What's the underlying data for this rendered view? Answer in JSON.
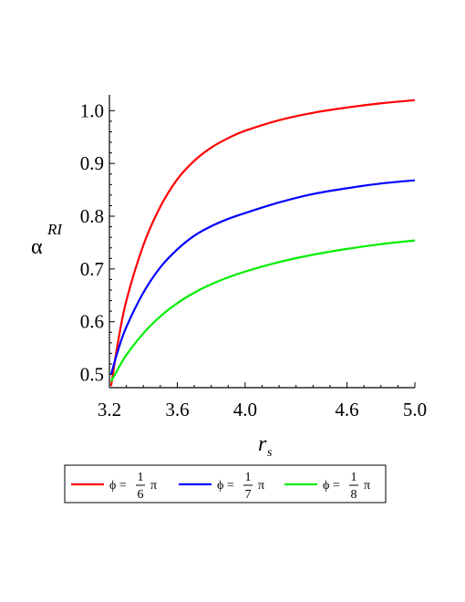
{
  "chart_data": {
    "type": "line",
    "xlabel": {
      "base": "r",
      "sub": "s"
    },
    "ylabel": {
      "base": "α",
      "sup": "RI"
    },
    "xlim": [
      3.2,
      5.0
    ],
    "ylim": [
      0.475,
      1.03
    ],
    "xticks": [
      3.2,
      3.6,
      4.0,
      4.6,
      5.0
    ],
    "xtick_labels": [
      "3.2",
      "3.6",
      "4.0",
      "4.6",
      "5.0"
    ],
    "yticks": [
      0.5,
      0.6,
      0.7,
      0.8,
      0.9,
      1.0
    ],
    "ytick_labels": [
      "0.5",
      "0.6",
      "0.7",
      "0.8",
      "0.9",
      "1.0"
    ],
    "grid": false,
    "legend_placement": "bottom",
    "series": [
      {
        "name": "ϕ = 1/6 π",
        "legend": {
          "symbol": "ϕ",
          "num": "1",
          "den": "6",
          "suffix": "π"
        },
        "color": "#ff0000",
        "x": [
          3.21,
          3.25,
          3.3,
          3.4,
          3.5,
          3.6,
          3.7,
          3.8,
          3.9,
          4.0,
          4.2,
          4.4,
          4.6,
          4.8,
          5.0
        ],
        "y": [
          0.478,
          0.56,
          0.64,
          0.745,
          0.818,
          0.87,
          0.905,
          0.93,
          0.948,
          0.962,
          0.982,
          0.996,
          1.006,
          1.014,
          1.02
        ]
      },
      {
        "name": "ϕ = 1/7 π",
        "legend": {
          "symbol": "ϕ",
          "num": "1",
          "den": "7",
          "suffix": "π"
        },
        "color": "#0000ff",
        "x": [
          3.21,
          3.25,
          3.3,
          3.4,
          3.5,
          3.6,
          3.7,
          3.8,
          3.9,
          4.0,
          4.2,
          4.4,
          4.6,
          4.8,
          5.0
        ],
        "y": [
          0.5,
          0.545,
          0.59,
          0.655,
          0.703,
          0.737,
          0.763,
          0.781,
          0.795,
          0.806,
          0.826,
          0.842,
          0.853,
          0.862,
          0.868
        ]
      },
      {
        "name": "ϕ = 1/8 π",
        "legend": {
          "symbol": "ϕ",
          "num": "1",
          "den": "8",
          "suffix": "π"
        },
        "color": "#00ee00",
        "x": [
          3.21,
          3.25,
          3.3,
          3.4,
          3.5,
          3.6,
          3.7,
          3.8,
          3.9,
          4.0,
          4.2,
          4.4,
          4.6,
          4.8,
          5.0
        ],
        "y": [
          0.487,
          0.51,
          0.537,
          0.578,
          0.61,
          0.635,
          0.655,
          0.671,
          0.684,
          0.695,
          0.713,
          0.727,
          0.738,
          0.747,
          0.754
        ]
      }
    ]
  }
}
